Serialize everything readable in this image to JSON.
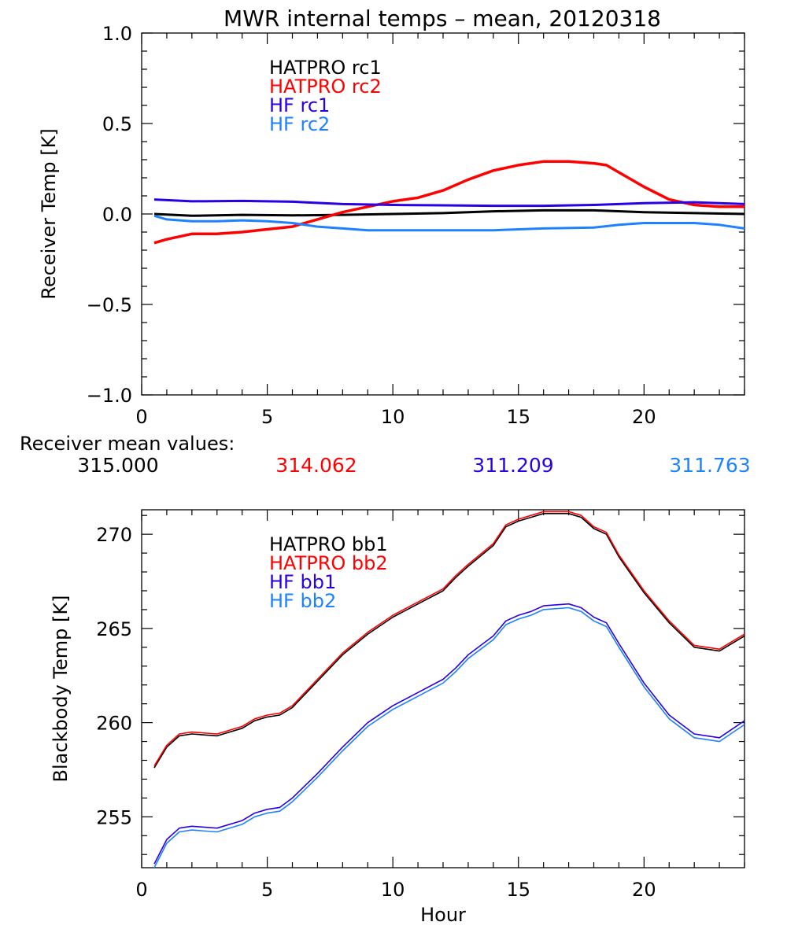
{
  "chart_data": [
    {
      "type": "line",
      "title": "MWR internal temps – mean, 20120318",
      "xlabel": "",
      "ylabel": "Receiver Temp [K]",
      "xlim": [
        0,
        24
      ],
      "ylim": [
        -1.0,
        1.0
      ],
      "xticks": [
        0,
        5,
        10,
        15,
        20
      ],
      "xtick_labels": [
        "0",
        "5",
        "10",
        "15",
        "20"
      ],
      "yticks": [
        -1.0,
        -0.5,
        0.0,
        0.5,
        1.0
      ],
      "ytick_labels": [
        "−1.0",
        "−0.5",
        "0.0",
        "0.5",
        "1.0"
      ],
      "grid": false,
      "legend_position": "top-left",
      "series": [
        {
          "name": "HATPRO rc1",
          "color": "#000000",
          "x": [
            0.5,
            2,
            4,
            6,
            8,
            10,
            12,
            14,
            16,
            18,
            20,
            22,
            24
          ],
          "y": [
            0.0,
            -0.01,
            -0.005,
            -0.008,
            -0.005,
            0.0,
            0.005,
            0.015,
            0.02,
            0.02,
            0.01,
            0.005,
            0.0
          ]
        },
        {
          "name": "HATPRO rc2",
          "color": "#ff0000",
          "x": [
            0.5,
            1,
            2,
            3,
            4,
            5,
            6,
            7,
            8,
            9,
            10,
            11,
            12,
            13,
            14,
            15,
            16,
            17,
            18,
            18.5,
            19,
            20,
            21,
            22,
            23,
            24
          ],
          "y": [
            -0.16,
            -0.14,
            -0.11,
            -0.11,
            -0.1,
            -0.085,
            -0.07,
            -0.03,
            0.01,
            0.04,
            0.07,
            0.09,
            0.13,
            0.19,
            0.24,
            0.27,
            0.29,
            0.29,
            0.28,
            0.27,
            0.23,
            0.15,
            0.08,
            0.05,
            0.04,
            0.04
          ]
        },
        {
          "name": "HF rc1",
          "color": "#2a00e6",
          "x": [
            0.5,
            2,
            4,
            6,
            8,
            10,
            12,
            14,
            16,
            18,
            20,
            22,
            24
          ],
          "y": [
            0.08,
            0.07,
            0.072,
            0.068,
            0.055,
            0.05,
            0.048,
            0.045,
            0.045,
            0.05,
            0.06,
            0.065,
            0.055
          ]
        },
        {
          "name": "HF rc2",
          "color": "#1e82ff",
          "x": [
            0.5,
            1,
            2,
            3,
            4,
            5,
            6,
            7,
            8,
            9,
            10,
            12,
            14,
            16,
            18,
            19,
            20,
            22,
            23,
            24
          ],
          "y": [
            -0.01,
            -0.03,
            -0.04,
            -0.04,
            -0.035,
            -0.04,
            -0.05,
            -0.07,
            -0.08,
            -0.09,
            -0.09,
            -0.09,
            -0.09,
            -0.08,
            -0.075,
            -0.06,
            -0.05,
            -0.05,
            -0.06,
            -0.08
          ]
        }
      ],
      "annotation_title": "Receiver mean values:",
      "mean_values": [
        {
          "text": "315.000",
          "color": "#000000"
        },
        {
          "text": "314.062",
          "color": "#ff0000"
        },
        {
          "text": "311.209",
          "color": "#2a00e6"
        },
        {
          "text": "311.763",
          "color": "#1e82ff"
        }
      ]
    },
    {
      "type": "line",
      "title": "",
      "xlabel": "Hour",
      "ylabel": "Blackbody Temp [K]",
      "xlim": [
        0,
        24
      ],
      "ylim": [
        252.3,
        271.3
      ],
      "xticks": [
        0,
        5,
        10,
        15,
        20
      ],
      "xtick_labels": [
        "0",
        "5",
        "10",
        "15",
        "20"
      ],
      "yticks": [
        255,
        260,
        265,
        270
      ],
      "ytick_labels": [
        "255",
        "260",
        "265",
        "270"
      ],
      "grid": false,
      "legend_position": "top-left",
      "series": [
        {
          "name": "HATPRO bb1",
          "color": "#000000",
          "x": [
            0.5,
            1,
            1.5,
            2,
            3,
            4,
            4.5,
            5,
            5.5,
            6,
            7,
            8,
            9,
            10,
            11,
            12,
            12.5,
            13,
            14,
            14.5,
            15,
            15.5,
            16,
            17,
            17.5,
            18,
            18.5,
            19,
            20,
            21,
            22,
            23,
            24
          ],
          "y": [
            257.6,
            258.7,
            259.3,
            259.4,
            259.3,
            259.7,
            260.1,
            260.3,
            260.4,
            260.8,
            262.2,
            263.6,
            264.7,
            265.6,
            266.3,
            267.0,
            267.7,
            268.3,
            269.4,
            270.4,
            270.7,
            270.9,
            271.1,
            271.1,
            270.9,
            270.3,
            270.0,
            268.8,
            266.9,
            265.3,
            264.0,
            263.8,
            264.6
          ]
        },
        {
          "name": "HATPRO bb2",
          "color": "#ff0000",
          "x": [
            0.5,
            1,
            1.5,
            2,
            3,
            4,
            4.5,
            5,
            5.5,
            6,
            7,
            8,
            9,
            10,
            11,
            12,
            12.5,
            13,
            14,
            14.5,
            15,
            15.5,
            16,
            17,
            17.5,
            18,
            18.5,
            19,
            20,
            21,
            22,
            23,
            24
          ],
          "y": [
            257.7,
            258.8,
            259.4,
            259.5,
            259.4,
            259.8,
            260.2,
            260.4,
            260.5,
            260.9,
            262.3,
            263.7,
            264.8,
            265.7,
            266.4,
            267.1,
            267.8,
            268.4,
            269.5,
            270.5,
            270.8,
            271.0,
            271.2,
            271.2,
            271.0,
            270.4,
            270.1,
            268.9,
            267.0,
            265.4,
            264.1,
            263.9,
            264.7
          ]
        },
        {
          "name": "HF bb1",
          "color": "#2a00e6",
          "x": [
            0.5,
            1,
            1.5,
            2,
            3,
            4,
            4.5,
            5,
            5.5,
            6,
            7,
            8,
            9,
            10,
            11,
            12,
            12.5,
            13,
            14,
            14.5,
            15,
            15.5,
            16,
            17,
            17.5,
            18,
            18.5,
            19,
            20,
            21,
            22,
            23,
            24
          ],
          "y": [
            252.5,
            253.8,
            254.4,
            254.5,
            254.4,
            254.8,
            255.2,
            255.4,
            255.5,
            256.0,
            257.3,
            258.7,
            260.0,
            260.9,
            261.6,
            262.3,
            262.9,
            263.6,
            264.6,
            265.4,
            265.7,
            265.9,
            266.2,
            266.3,
            266.1,
            265.6,
            265.3,
            264.2,
            262.1,
            260.4,
            259.4,
            259.2,
            260.1
          ]
        },
        {
          "name": "HF bb2",
          "color": "#1e82ff",
          "x": [
            0.5,
            1,
            1.5,
            2,
            3,
            4,
            4.5,
            5,
            5.5,
            6,
            7,
            8,
            9,
            10,
            11,
            12,
            12.5,
            13,
            14,
            14.5,
            15,
            15.5,
            16,
            17,
            17.5,
            18,
            18.5,
            19,
            20,
            21,
            22,
            23,
            24
          ],
          "y": [
            252.3,
            253.6,
            254.2,
            254.3,
            254.2,
            254.6,
            255.0,
            255.2,
            255.3,
            255.8,
            257.1,
            258.5,
            259.8,
            260.7,
            261.4,
            262.1,
            262.7,
            263.4,
            264.4,
            265.2,
            265.5,
            265.7,
            266.0,
            266.1,
            265.9,
            265.4,
            265.1,
            264.0,
            261.9,
            260.2,
            259.2,
            259.0,
            259.9
          ]
        }
      ]
    }
  ]
}
